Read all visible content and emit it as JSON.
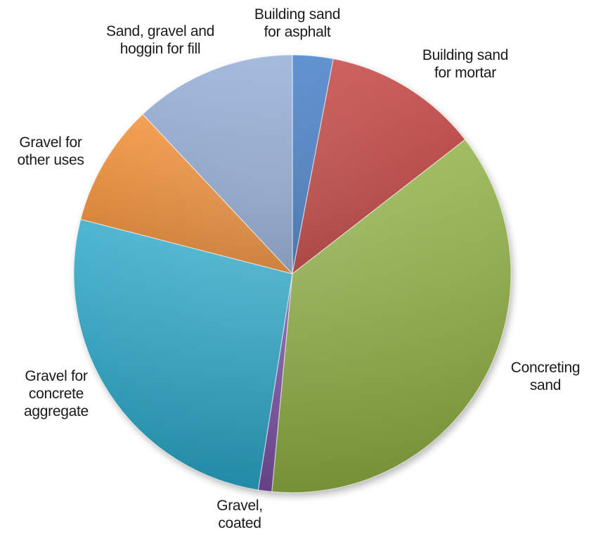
{
  "chart_data": {
    "type": "pie",
    "title": "",
    "slices": [
      {
        "label_lines": [
          "Building sand",
          "for asphalt"
        ],
        "value": 3.0,
        "color": "#3a78c6"
      },
      {
        "label_lines": [
          "Building sand",
          "for mortar"
        ],
        "value": 11.5,
        "color": "#c23b38"
      },
      {
        "label_lines": [
          "Concreting",
          "sand"
        ],
        "value": 37.0,
        "color": "#8fb041"
      },
      {
        "label_lines": [
          "Gravel,",
          "coated"
        ],
        "value": 1.0,
        "color": "#7a4fa3"
      },
      {
        "label_lines": [
          "Gravel for",
          "concrete",
          "aggregate"
        ],
        "value": 26.5,
        "color": "#2aa7c8"
      },
      {
        "label_lines": [
          "Gravel for",
          "other uses"
        ],
        "value": 9.0,
        "color": "#f28a2c"
      },
      {
        "label_lines": [
          "Sand, gravel and",
          "hoggin for fill"
        ],
        "value": 12.0,
        "color": "#8faad6"
      }
    ]
  }
}
